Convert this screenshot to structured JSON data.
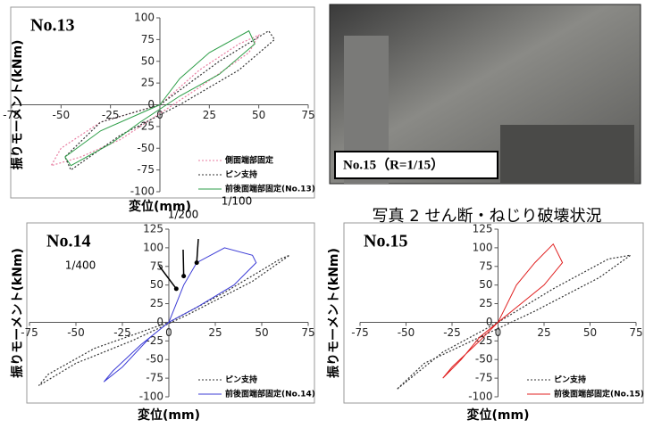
{
  "chart_data": [
    {
      "type": "line",
      "title": "No.13",
      "x_label": "変位(mm)",
      "y_label": "振りモーメント(kNm)",
      "xlim": [
        -75,
        75
      ],
      "ylim": [
        -100,
        100
      ],
      "xticks": [
        -75,
        -50,
        -25,
        0,
        25,
        50,
        75
      ],
      "yticks": [
        -100,
        -75,
        -50,
        -25,
        0,
        25,
        50,
        75,
        100
      ],
      "legend": "lower right",
      "series": [
        {
          "name": "側面端部固定",
          "color": "#e87ca0",
          "dash": "dotted",
          "x": [
            0,
            20,
            40,
            50,
            45,
            20,
            0,
            -20,
            -40,
            -55,
            -50,
            -30,
            0
          ],
          "values": [
            0,
            40,
            70,
            80,
            60,
            20,
            -10,
            -40,
            -60,
            -70,
            -50,
            -20,
            0
          ]
        },
        {
          "name": "ピン支持",
          "color": "#333333",
          "dash": "dotted",
          "x": [
            0,
            30,
            55,
            58,
            40,
            10,
            -20,
            -45,
            -48,
            -30,
            0
          ],
          "values": [
            0,
            50,
            85,
            75,
            40,
            0,
            -35,
            -75,
            -60,
            -20,
            0
          ]
        },
        {
          "name": "前後面端部固定(No.13)",
          "color": "#2e9e48",
          "dash": "solid",
          "x": [
            0,
            10,
            25,
            45,
            48,
            30,
            10,
            0,
            -10,
            -25,
            -45,
            -48,
            -30,
            -10,
            0
          ],
          "values": [
            0,
            30,
            60,
            85,
            70,
            35,
            10,
            -5,
            -20,
            -45,
            -70,
            -60,
            -30,
            -10,
            0
          ]
        }
      ]
    },
    {
      "type": "line",
      "title": "No.14",
      "x_label": "変位(mm)",
      "y_label": "振りモーメント(kNm)",
      "xlim": [
        -75,
        75
      ],
      "ylim": [
        -100,
        125
      ],
      "xticks": [
        -75,
        -50,
        -25,
        0,
        25,
        50,
        75
      ],
      "yticks": [
        -100,
        -75,
        -50,
        -25,
        0,
        25,
        50,
        75,
        100,
        125
      ],
      "legend": "lower right",
      "annotations": [
        "1/100",
        "1/200",
        "1/400"
      ],
      "series": [
        {
          "name": "ピン支持",
          "color": "#333333",
          "dash": "dotted",
          "x": [
            0,
            30,
            60,
            65,
            45,
            10,
            -20,
            -50,
            -70,
            -65,
            -40,
            0
          ],
          "values": [
            0,
            40,
            85,
            90,
            55,
            10,
            -25,
            -55,
            -85,
            -70,
            -35,
            0
          ]
        },
        {
          "name": "前後面端部固定(No.14)",
          "color": "#3c3cd6",
          "dash": "solid",
          "x": [
            0,
            8,
            15,
            30,
            45,
            47,
            35,
            15,
            0,
            -10,
            -25,
            -35,
            -30,
            -15,
            0
          ],
          "values": [
            0,
            50,
            80,
            100,
            90,
            80,
            50,
            20,
            0,
            -20,
            -60,
            -80,
            -65,
            -30,
            0
          ]
        }
      ]
    },
    {
      "type": "line",
      "title": "No.15",
      "x_label": "変位(mm)",
      "y_label": "振りモーメント(kNm)",
      "xlim": [
        -75,
        75
      ],
      "ylim": [
        -100,
        125
      ],
      "xticks": [
        -75,
        -50,
        -25,
        0,
        25,
        50,
        75
      ],
      "yticks": [
        -100,
        -75,
        -50,
        -25,
        0,
        25,
        50,
        75,
        100,
        125
      ],
      "legend": "lower right",
      "series": [
        {
          "name": "ピン支持",
          "color": "#333333",
          "dash": "dotted",
          "x": [
            0,
            30,
            60,
            72,
            55,
            20,
            -10,
            -40,
            -55,
            -50,
            -30,
            0
          ],
          "values": [
            0,
            45,
            85,
            90,
            60,
            15,
            -20,
            -55,
            -90,
            -80,
            -40,
            0
          ]
        },
        {
          "name": "前後面端部固定(No.15)",
          "color": "#e02020",
          "dash": "solid",
          "x": [
            0,
            10,
            20,
            30,
            35,
            25,
            10,
            0,
            -10,
            -20,
            -30,
            -25,
            -10,
            0
          ],
          "values": [
            0,
            50,
            80,
            105,
            80,
            50,
            20,
            0,
            -20,
            -50,
            -75,
            -60,
            -25,
            0
          ]
        }
      ]
    }
  ],
  "photo": {
    "label": "No.15（R=1/15）",
    "caption": "写真 2 せん断・ねじり破壊状況"
  }
}
